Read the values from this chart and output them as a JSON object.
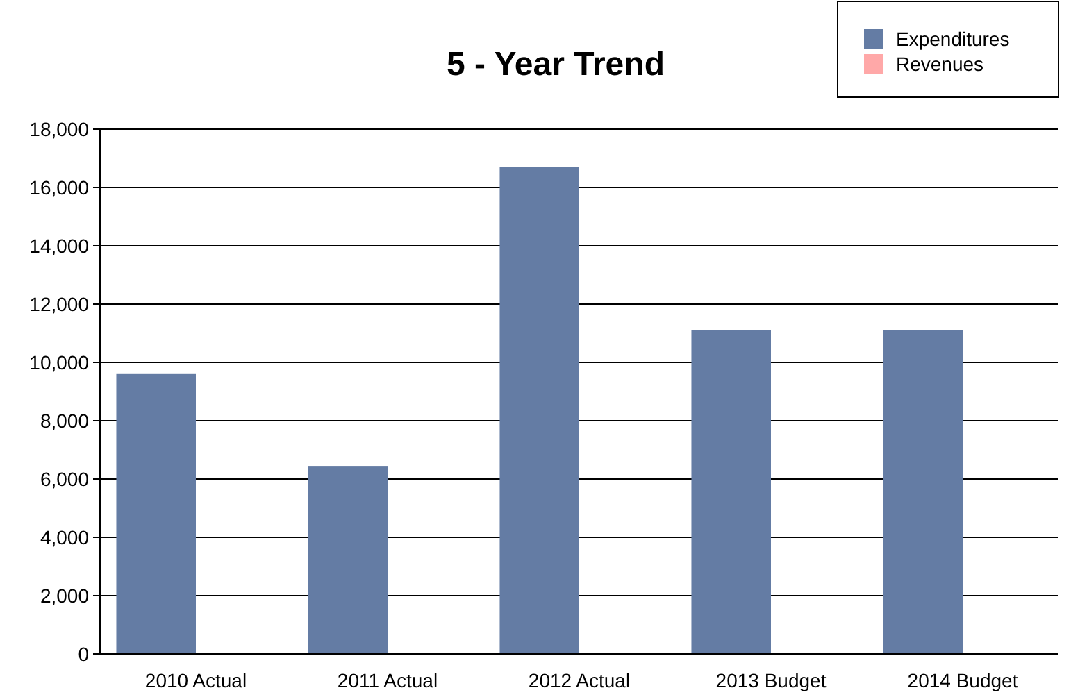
{
  "chart_data": {
    "type": "bar",
    "title": "5 - Year Trend",
    "categories": [
      "2010 Actual",
      "2011 Actual",
      "2012 Actual",
      "2013 Budget",
      "2014 Budget"
    ],
    "series": [
      {
        "name": "Expenditures",
        "color": "#647ca4",
        "values": [
          9600,
          6450,
          16700,
          11100,
          11100
        ]
      },
      {
        "name": "Revenues",
        "color": "#ffa8a8",
        "values": [
          0,
          0,
          0,
          0,
          0
        ]
      }
    ],
    "ylim": [
      0,
      18000
    ],
    "yticks": [
      {
        "value": 0,
        "label": "0"
      },
      {
        "value": 2000,
        "label": "2,000"
      },
      {
        "value": 4000,
        "label": "4,000"
      },
      {
        "value": 6000,
        "label": "6,000"
      },
      {
        "value": 8000,
        "label": "8,000"
      },
      {
        "value": 10000,
        "label": "10,000"
      },
      {
        "value": 12000,
        "label": "12,000"
      },
      {
        "value": 14000,
        "label": "14,000"
      },
      {
        "value": 16000,
        "label": "16,000"
      },
      {
        "value": 18000,
        "label": "18,000"
      }
    ],
    "grid": "y",
    "legend": "top right"
  }
}
